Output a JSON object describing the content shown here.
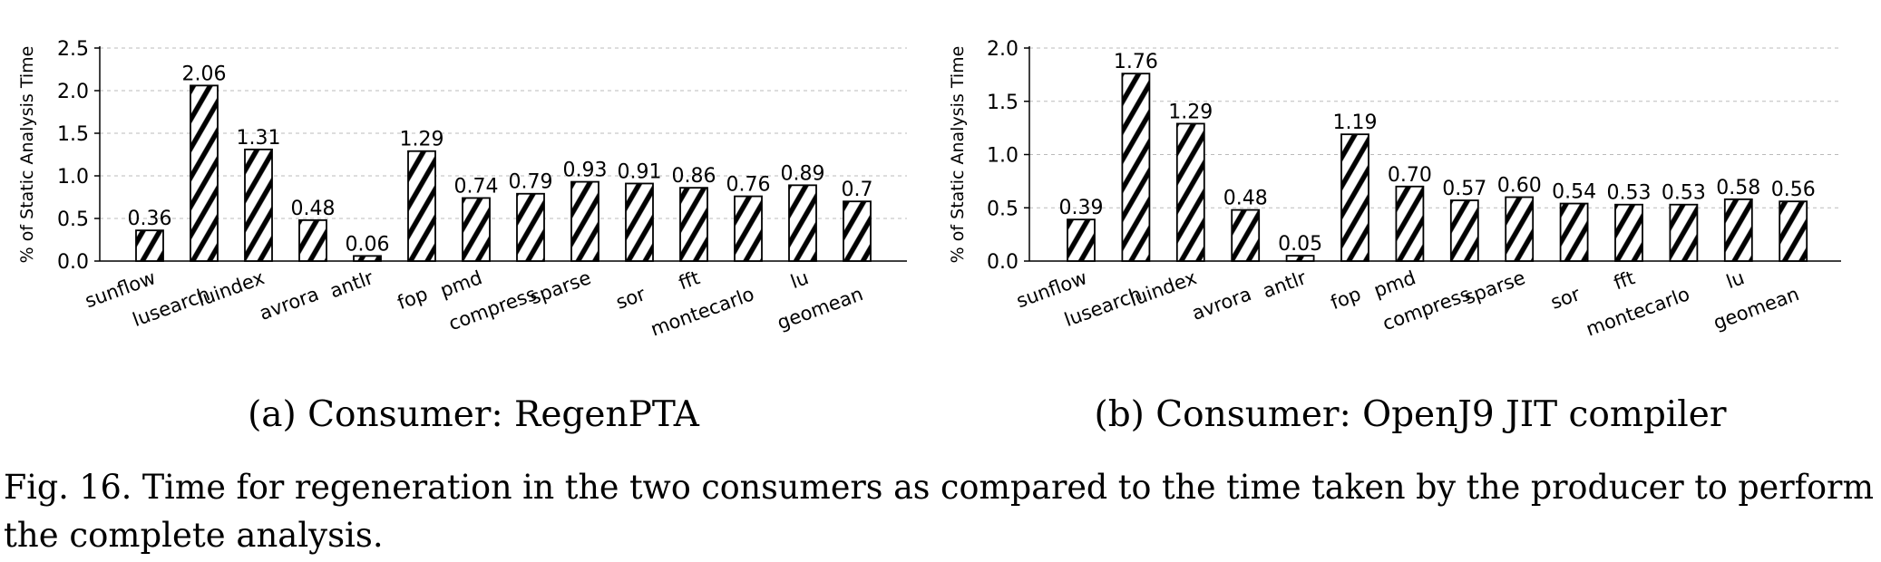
{
  "figure": {
    "caption_line1": "Fig. 16.  Time for regeneration in the two consumers as compared to the time taken by the producer to perform",
    "caption_line2": "the complete analysis."
  },
  "chart_data": [
    {
      "type": "bar",
      "subcaption": "(a) Consumer: RegenPTA",
      "ylabel": "% of Static Analysis Time",
      "xlabel": "",
      "ylim": [
        0,
        2.5
      ],
      "yticks": [
        "0.0",
        "0.5",
        "1.0",
        "1.5",
        "2.0",
        "2.5"
      ],
      "grid": "horizontal-dashed",
      "categories": [
        "sunflow",
        "lusearch",
        "luindex",
        "avrora",
        "antlr",
        "fop",
        "pmd",
        "compress",
        "sparse",
        "sor",
        "fft",
        "montecarlo",
        "lu",
        "geomean"
      ],
      "values": [
        0.36,
        2.06,
        1.31,
        0.48,
        0.06,
        1.29,
        0.74,
        0.79,
        0.93,
        0.91,
        0.86,
        0.76,
        0.89,
        0.7
      ],
      "labels": [
        "0.36",
        "2.06",
        "1.31",
        "0.48",
        "0.06",
        "1.29",
        "0.74",
        "0.79",
        "0.93",
        "0.91",
        "0.86",
        "0.76",
        "0.89",
        "0.7"
      ]
    },
    {
      "type": "bar",
      "subcaption": "(b) Consumer: OpenJ9 JIT compiler",
      "ylabel": "% of Static Analysis Time",
      "xlabel": "",
      "ylim": [
        0,
        2.0
      ],
      "yticks": [
        "0.0",
        "0.5",
        "1.0",
        "1.5",
        "2.0"
      ],
      "grid": "horizontal-dashed",
      "categories": [
        "sunflow",
        "lusearch",
        "luindex",
        "avrora",
        "antlr",
        "fop",
        "pmd",
        "compress",
        "sparse",
        "sor",
        "fft",
        "montecarlo",
        "lu",
        "geomean"
      ],
      "values": [
        0.39,
        1.76,
        1.29,
        0.48,
        0.05,
        1.19,
        0.7,
        0.57,
        0.6,
        0.54,
        0.53,
        0.53,
        0.58,
        0.56
      ],
      "labels": [
        "0.39",
        "1.76",
        "1.29",
        "0.48",
        "0.05",
        "1.19",
        "0.70",
        "0.57",
        "0.60",
        "0.54",
        "0.53",
        "0.53",
        "0.58",
        "0.56"
      ]
    }
  ]
}
